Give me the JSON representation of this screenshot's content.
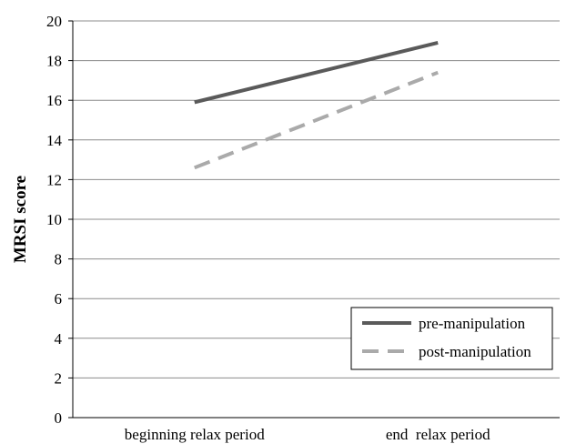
{
  "chart_data": {
    "type": "line",
    "title": "",
    "xlabel": "",
    "ylabel": "MRSI score",
    "categories": [
      "beginning relax period",
      "end  relax period"
    ],
    "ylim": [
      0,
      20
    ],
    "yticks": [
      0,
      2,
      4,
      6,
      8,
      10,
      12,
      14,
      16,
      18,
      20
    ],
    "grid": true,
    "legend_position": "bottom-right",
    "series": [
      {
        "name": "pre-manipulation",
        "values": [
          15.9,
          18.9
        ],
        "color": "#5a5a5a",
        "style": "solid"
      },
      {
        "name": "post-manipulation",
        "values": [
          12.6,
          17.4
        ],
        "color": "#aaaaaa",
        "style": "dashed"
      }
    ]
  }
}
